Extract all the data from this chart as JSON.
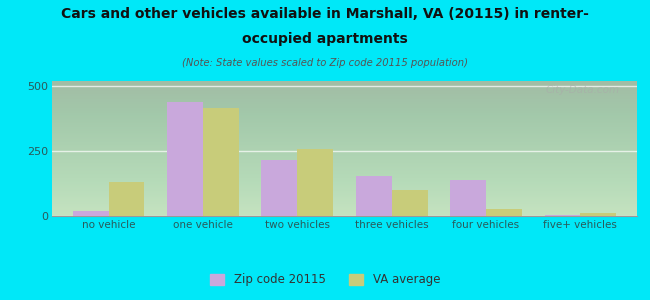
{
  "title_line1": "Cars and other vehicles available in Marshall, VA (20115) in renter-",
  "title_line2": "occupied apartments",
  "subtitle": "(Note: State values scaled to Zip code 20115 population)",
  "categories": [
    "no vehicle",
    "one vehicle",
    "two vehicles",
    "three vehicles",
    "four vehicles",
    "five+ vehicles"
  ],
  "zip_values": [
    20,
    440,
    215,
    155,
    140,
    5
  ],
  "va_values": [
    130,
    415,
    260,
    100,
    28,
    12
  ],
  "zip_color": "#c9a8dc",
  "va_color": "#c8cc7a",
  "background_outer": "#00e8f8",
  "ylim": [
    0,
    520
  ],
  "yticks": [
    0,
    250,
    500
  ],
  "bar_width": 0.38,
  "zip_label": "Zip code 20115",
  "va_label": "VA average",
  "watermark": "City-Data.com",
  "title_color": "#111111",
  "subtitle_color": "#555555",
  "tick_color": "#2a5a5a",
  "legend_color": "#333333"
}
